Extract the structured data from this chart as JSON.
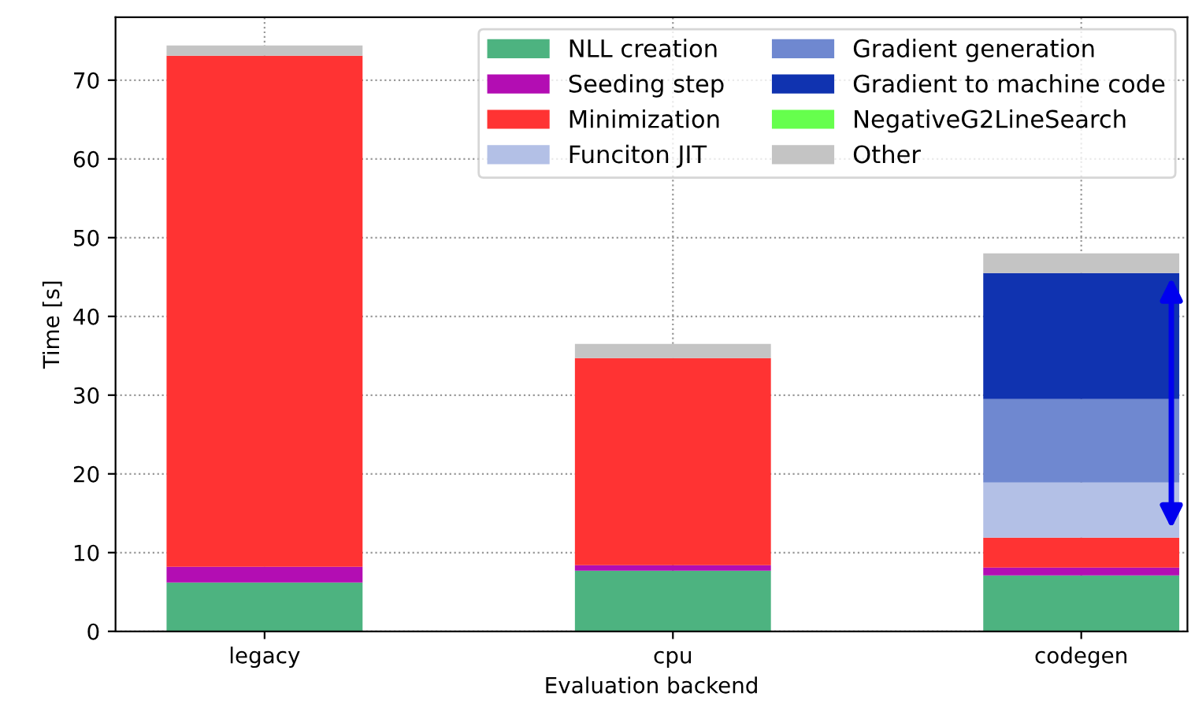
{
  "chart_data": {
    "type": "bar",
    "stacked": true,
    "xlabel": "Evaluation backend",
    "ylabel": "Time [s]",
    "categories": [
      "legacy",
      "cpu",
      "codegen"
    ],
    "series": [
      {
        "name": "NLL creation",
        "color": "#4db380",
        "values": [
          6.2,
          7.7,
          7.1
        ]
      },
      {
        "name": "Seeding step",
        "color": "#b30db3",
        "values": [
          2.0,
          0.7,
          1.0
        ]
      },
      {
        "name": "Minimization",
        "color": "#ff3333",
        "values": [
          64.9,
          26.3,
          3.8
        ]
      },
      {
        "name": "Funciton JIT",
        "color": "#b3c0e6",
        "values": [
          0,
          0,
          7.0
        ]
      },
      {
        "name": "Gradient generation",
        "color": "#6f88d0",
        "values": [
          0,
          0,
          10.6
        ]
      },
      {
        "name": "Gradient to machine code",
        "color": "#1033b0",
        "values": [
          0,
          0,
          16.0
        ]
      },
      {
        "name": "NegativeG2LineSearch",
        "color": "#66ff4d",
        "values": [
          0,
          0,
          0
        ]
      },
      {
        "name": "Other",
        "color": "#c4c4c4",
        "values": [
          1.3,
          1.8,
          2.5
        ]
      }
    ],
    "ylim": [
      0,
      78
    ],
    "yticks": [
      0,
      10,
      20,
      30,
      40,
      50,
      60,
      70
    ],
    "grid": true,
    "legend": "top right"
  }
}
